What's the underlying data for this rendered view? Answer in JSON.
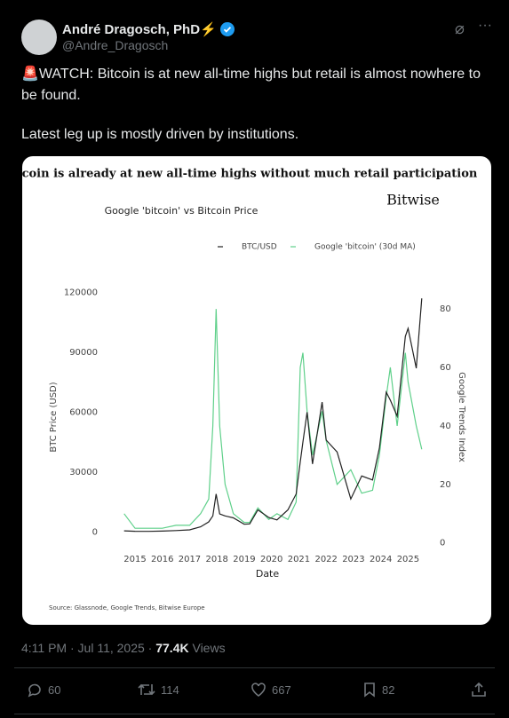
{
  "tweet": {
    "name": "André Dragosch, PhD⚡",
    "handle": "@Andre_Dragosch",
    "text": [
      "🚨WATCH: Bitcoin is at new all-time highs but retail is almost nowhere to be found.",
      "Latest leg up is mostly driven by institutions."
    ],
    "time": "4:11 PM · Jul 11, 2025 · ",
    "views": "77.4K",
    "views_label": "Views",
    "replies": "60",
    "reposts": "114",
    "likes": "667",
    "bookmarks": "82"
  },
  "chart_data": {
    "type": "line",
    "title": "Bitcoin is already at new all-time highs without much retail participation",
    "brand": "Bitwise",
    "subtitle": "Google 'bitcoin' vs Bitcoin Price",
    "xlabel": "Date",
    "ylabel": "BTC Price (USD)",
    "y2label": "Google Trends Index",
    "source": "Source: Glassnode, Google Trends, Bitwise Europe",
    "x": [
      2014.6,
      2015,
      2015.5,
      2016,
      2016.5,
      2017,
      2017.4,
      2017.7,
      2017.85,
      2017.97,
      2018.1,
      2018.3,
      2018.6,
      2019,
      2019.2,
      2019.5,
      2019.9,
      2020.2,
      2020.6,
      2020.9,
      2021.05,
      2021.15,
      2021.3,
      2021.5,
      2021.85,
      2022,
      2022.4,
      2022.9,
      2023.3,
      2023.7,
      2023.95,
      2024.2,
      2024.35,
      2024.6,
      2024.9,
      2025,
      2025.3,
      2025.5
    ],
    "series": [
      {
        "name": "BTC/USD",
        "color": "#222222",
        "values": [
          500,
          300,
          250,
          400,
          650,
          1000,
          2500,
          5000,
          8000,
          19000,
          9000,
          8000,
          7000,
          3800,
          4000,
          11000,
          7200,
          6000,
          11000,
          19000,
          35000,
          45000,
          60000,
          34000,
          65000,
          46000,
          40000,
          16500,
          28000,
          26000,
          42000,
          70000,
          66000,
          58000,
          98000,
          102000,
          82000,
          117000
        ]
      },
      {
        "name": "Google 'bitcoin' (30d MA)",
        "color": "#5fd08a",
        "axis": "y2",
        "values": [
          10,
          5,
          5,
          5,
          6,
          6,
          10,
          15,
          40,
          80,
          40,
          20,
          10,
          7,
          7,
          12,
          8,
          10,
          8,
          14,
          60,
          65,
          45,
          30,
          45,
          35,
          20,
          25,
          17,
          18,
          30,
          50,
          60,
          40,
          65,
          55,
          40,
          32
        ]
      }
    ],
    "xlim": [
      2014.1,
      2025.65
    ],
    "xticks": [
      2015,
      2016,
      2017,
      2018,
      2019,
      2020,
      2021,
      2022,
      2023,
      2024,
      2025
    ],
    "ylim": [
      -7000,
      122000
    ],
    "yticks": [
      0,
      30000,
      60000,
      90000,
      120000
    ],
    "y2lim": [
      -1,
      87
    ],
    "y2ticks": [
      0,
      20,
      40,
      60,
      80
    ]
  }
}
